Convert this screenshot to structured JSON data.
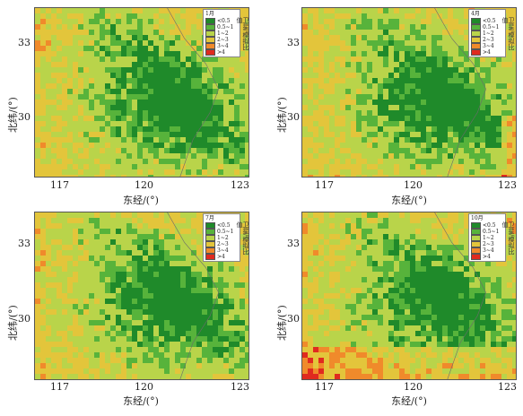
{
  "panels": [
    {
      "month": "1月",
      "variant": 0
    },
    {
      "month": "4月",
      "variant": 1
    },
    {
      "month": "7月",
      "variant": 2
    },
    {
      "month": "10月",
      "variant": 3
    }
  ],
  "legend": {
    "title": "卫星/模拟比值",
    "items": [
      {
        "label": "<0.5",
        "color": "#1f8a2a"
      },
      {
        "label": "0.5~1",
        "color": "#57b33b"
      },
      {
        "label": "1~2",
        "color": "#b9d44a"
      },
      {
        "label": "2~3",
        "color": "#e3c53b"
      },
      {
        "label": "3~4",
        "color": "#f08a2b"
      },
      {
        "label": ">4",
        "color": "#e02a1f"
      }
    ]
  },
  "axes": {
    "xlabel": "东经/(°)",
    "ylabel": "北纬/(°)",
    "xticks": [
      "117",
      "120",
      "123"
    ],
    "yticks": [
      "33",
      "30"
    ]
  }
}
